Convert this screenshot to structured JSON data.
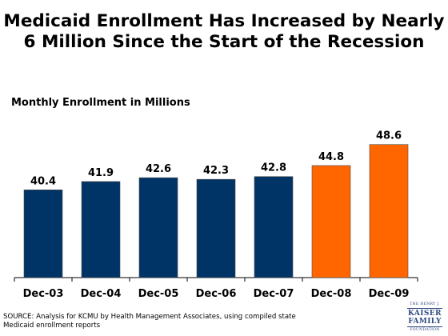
{
  "title": "Medicaid Enrollment Has Increased by Nearly 6 Million Since the Start of the Recession",
  "subtitle": "Monthly Enrollment in Millions",
  "source": "SOURCE:  Analysis for KCMU by Health Management Associates, using compiled state Medicaid enrollment reports",
  "logo": {
    "line1": "THE HENRY J.",
    "line2": "KAISER",
    "line3": "FAMILY",
    "line4": "FOUNDATION"
  },
  "colors": {
    "recession_bar": "#FF6600",
    "pre_recession_bar": "#003366",
    "axis": "#000000"
  },
  "chart_data": {
    "type": "bar",
    "title": "Medicaid Enrollment Has Increased by Nearly 6 Million Since the Start of the Recession",
    "ylabel": "Monthly Enrollment in Millions",
    "xlabel": "",
    "categories": [
      "Dec-03",
      "Dec-04",
      "Dec-05",
      "Dec-06",
      "Dec-07",
      "Dec-08",
      "Dec-09"
    ],
    "values": [
      40.4,
      41.9,
      42.6,
      42.3,
      42.8,
      44.8,
      48.6
    ],
    "value_labels": [
      "40.4",
      "41.9",
      "42.6",
      "42.3",
      "42.8",
      "44.8",
      "48.6"
    ],
    "bar_colors": [
      "#003366",
      "#003366",
      "#003366",
      "#003366",
      "#003366",
      "#FF6600",
      "#FF6600"
    ],
    "data_labels": true,
    "grid": false,
    "legend": "none"
  }
}
